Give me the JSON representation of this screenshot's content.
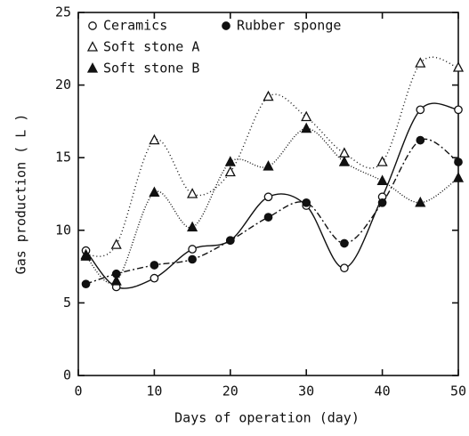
{
  "chart_data": {
    "type": "line",
    "x_label": "Days of operation (day)",
    "y_label": "Gas production ( L )",
    "x": [
      1,
      5,
      10,
      15,
      20,
      25,
      30,
      35,
      40,
      45,
      50
    ],
    "xlim": [
      0,
      50
    ],
    "xticks": [
      0,
      10,
      20,
      30,
      40,
      50
    ],
    "ylim": [
      0,
      25
    ],
    "yticks": [
      0,
      5,
      10,
      15,
      20,
      25
    ],
    "series": [
      {
        "name": "Ceramics",
        "color": "#111111",
        "marker": "circle-open",
        "dash": "none",
        "values": [
          8.6,
          6.1,
          6.7,
          8.7,
          9.3,
          12.3,
          11.7,
          7.4,
          12.3,
          18.3,
          18.3
        ]
      },
      {
        "name": "Rubber sponge",
        "color": "#111111",
        "marker": "circle-filled",
        "dash": "7 3 2 3",
        "values": [
          6.3,
          7.0,
          7.6,
          8.0,
          9.3,
          10.9,
          11.9,
          9.1,
          11.9,
          16.2,
          14.7
        ]
      },
      {
        "name": "Soft stone A",
        "color": "#111111",
        "marker": "triangle-open",
        "dash": "1 3",
        "values": [
          8.3,
          9.0,
          16.2,
          12.5,
          14.0,
          19.2,
          17.8,
          15.3,
          14.7,
          21.5,
          21.2
        ]
      },
      {
        "name": "Soft stone B",
        "color": "#111111",
        "marker": "triangle-filled",
        "dash": "1 2",
        "values": [
          8.2,
          6.5,
          12.6,
          10.2,
          14.7,
          14.4,
          17.0,
          14.7,
          13.4,
          11.9,
          13.6
        ]
      }
    ]
  }
}
